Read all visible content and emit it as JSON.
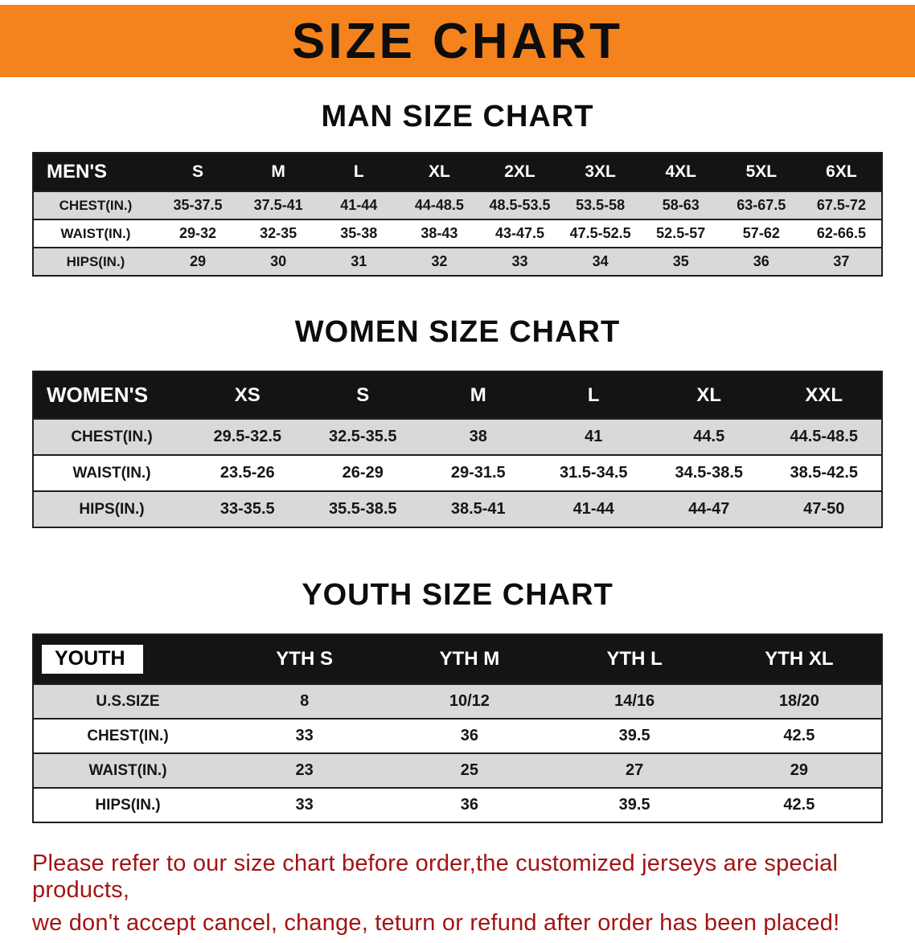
{
  "banner": {
    "title": "SIZE CHART",
    "bg_color": "#F4831D"
  },
  "men_chart": {
    "title": "MAN SIZE CHART",
    "header_label": "MEN'S",
    "sizes": [
      "S",
      "M",
      "L",
      "XL",
      "2XL",
      "3XL",
      "4XL",
      "5XL",
      "6XL"
    ],
    "rows": [
      {
        "label": "CHEST(IN.)",
        "values": [
          "35-37.5",
          "37.5-41",
          "41-44",
          "44-48.5",
          "48.5-53.5",
          "53.5-58",
          "58-63",
          "63-67.5",
          "67.5-72"
        ]
      },
      {
        "label": "WAIST(IN.)",
        "values": [
          "29-32",
          "32-35",
          "35-38",
          "38-43",
          "43-47.5",
          "47.5-52.5",
          "52.5-57",
          "57-62",
          "62-66.5"
        ]
      },
      {
        "label": "HIPS(IN.)",
        "values": [
          "29",
          "30",
          "31",
          "32",
          "33",
          "34",
          "35",
          "36",
          "37"
        ]
      }
    ]
  },
  "women_chart": {
    "title": "WOMEN SIZE CHART",
    "header_label": "WOMEN'S",
    "sizes": [
      "XS",
      "S",
      "M",
      "L",
      "XL",
      "XXL"
    ],
    "rows": [
      {
        "label": "CHEST(IN.)",
        "values": [
          "29.5-32.5",
          "32.5-35.5",
          "38",
          "41",
          "44.5",
          "44.5-48.5"
        ]
      },
      {
        "label": "WAIST(IN.)",
        "values": [
          "23.5-26",
          "26-29",
          "29-31.5",
          "31.5-34.5",
          "34.5-38.5",
          "38.5-42.5"
        ]
      },
      {
        "label": "HIPS(IN.)",
        "values": [
          "33-35.5",
          "35.5-38.5",
          "38.5-41",
          "41-44",
          "44-47",
          "47-50"
        ]
      }
    ]
  },
  "youth_chart": {
    "title": "YOUTH SIZE CHART",
    "header_label": "YOUTH",
    "sizes": [
      "YTH S",
      "YTH M",
      "YTH L",
      "YTH XL"
    ],
    "rows": [
      {
        "label": "U.S.SIZE",
        "values": [
          "8",
          "10/12",
          "14/16",
          "18/20"
        ]
      },
      {
        "label": "CHEST(IN.)",
        "values": [
          "33",
          "36",
          "39.5",
          "42.5"
        ]
      },
      {
        "label": "WAIST(IN.)",
        "values": [
          "23",
          "25",
          "27",
          "29"
        ]
      },
      {
        "label": "HIPS(IN.)",
        "values": [
          "33",
          "36",
          "39.5",
          "42.5"
        ]
      }
    ]
  },
  "footer": {
    "line1": "Please refer to our size chart before order,the customized jerseys are special products,",
    "line2": "we don't accept cancel, change, teturn or refund after order has been placed!",
    "text_color": "#A31414"
  }
}
